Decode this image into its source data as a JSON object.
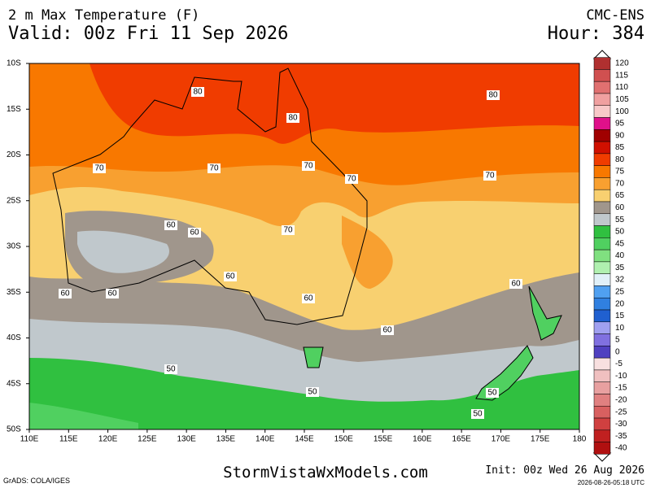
{
  "header": {
    "title": "2 m Max Temperature (F)",
    "valid": "Valid: 00z Fri 11 Sep 2026",
    "model": "CMC-ENS",
    "hour": "Hour: 384"
  },
  "axes": {
    "lat_labels": [
      "10S",
      "15S",
      "20S",
      "25S",
      "30S",
      "35S",
      "40S",
      "45S",
      "50S"
    ],
    "lon_labels": [
      "110E",
      "115E",
      "120E",
      "125E",
      "130E",
      "135E",
      "140E",
      "145E",
      "150E",
      "155E",
      "160E",
      "165E",
      "170E",
      "175E",
      "180"
    ]
  },
  "legend": {
    "labels": [
      120,
      115,
      110,
      105,
      100,
      95,
      90,
      85,
      80,
      75,
      70,
      65,
      60,
      55,
      50,
      45,
      40,
      35,
      32,
      25,
      20,
      15,
      10,
      5,
      0,
      -5,
      -10,
      -15,
      -20,
      -25,
      -30,
      -35,
      -40
    ],
    "colors": [
      "#b03030",
      "#d05050",
      "#e07070",
      "#f0a0a0",
      "#f8c8c8",
      "#e0108a",
      "#a00000",
      "#d01000",
      "#f03c00",
      "#f87800",
      "#f8a030",
      "#f8d070",
      "#a0968c",
      "#c0c8cc",
      "#30c040",
      "#50d060",
      "#80e080",
      "#b0f0b0",
      "#e0f0f8",
      "#50a0f0",
      "#3080e0",
      "#2060d0",
      "#a0a0f0",
      "#8070e0",
      "#5040c0",
      "#f8e0e0",
      "#f0c0c0",
      "#e8a0a0",
      "#e08080",
      "#d86060",
      "#d04040",
      "#c02020",
      "#b01010"
    ]
  },
  "contour_labels": [
    80,
    80,
    80,
    70,
    70,
    70,
    70,
    70,
    70,
    60,
    60,
    60,
    60,
    60,
    60,
    60,
    60,
    50,
    50,
    50,
    50
  ],
  "footer": {
    "credit": "GrADS: COLA/IGES",
    "site": "StormVistaWxModels.com",
    "init": "Init: 00z Wed 26 Aug 2026",
    "timestamp": "2026-08-26-05:18 UTC"
  }
}
